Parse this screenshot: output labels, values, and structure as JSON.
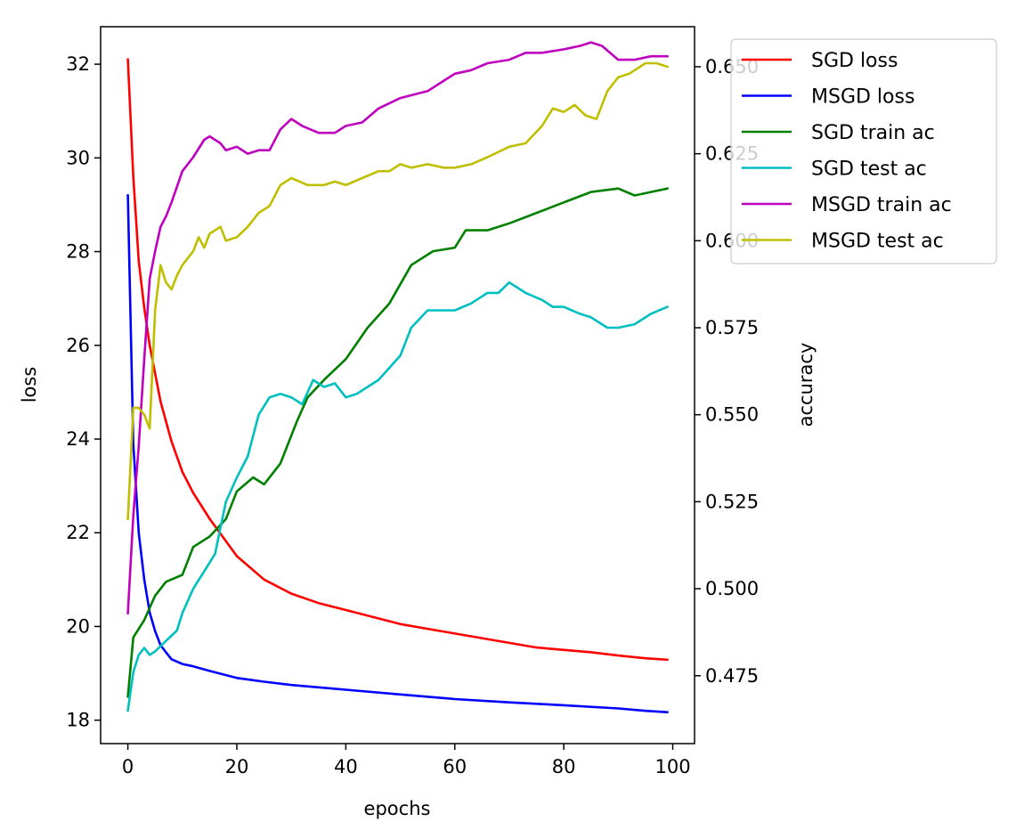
{
  "chart_data": {
    "type": "line",
    "xlabel": "epochs",
    "ylabel_left": "loss",
    "ylabel_right": "accuracy",
    "xlim": [
      -5,
      104
    ],
    "ylim_left": [
      17.5,
      32.8
    ],
    "ylim_right": [
      0.4555,
      0.6615
    ],
    "xticks": [
      0,
      20,
      40,
      60,
      80,
      100
    ],
    "xtick_labels": [
      "0",
      "20",
      "40",
      "60",
      "80",
      "100"
    ],
    "yticks_left": [
      18,
      20,
      22,
      24,
      26,
      28,
      30,
      32
    ],
    "ytick_labels_left": [
      "18",
      "20",
      "22",
      "24",
      "26",
      "28",
      "30",
      "32"
    ],
    "yticks_right": [
      0.475,
      0.5,
      0.525,
      0.55,
      0.575,
      0.6,
      0.625,
      0.65
    ],
    "ytick_labels_right": [
      "0.475",
      "0.500",
      "0.525",
      "0.550",
      "0.575",
      "0.600",
      "0.625",
      "0.650"
    ],
    "grid": false,
    "legend_placement": "outside upper-right",
    "series": [
      {
        "name": "SGD loss",
        "color": "#ff0000",
        "axis": "left",
        "x": [
          0,
          1,
          2,
          3,
          4,
          5,
          6,
          8,
          10,
          12,
          15,
          20,
          25,
          30,
          35,
          40,
          45,
          50,
          55,
          60,
          65,
          70,
          75,
          80,
          85,
          90,
          95,
          99
        ],
        "y": [
          32.1,
          29.6,
          27.8,
          26.8,
          26.0,
          25.4,
          24.8,
          23.95,
          23.3,
          22.85,
          22.3,
          21.5,
          21.0,
          20.7,
          20.5,
          20.35,
          20.2,
          20.05,
          19.95,
          19.85,
          19.75,
          19.65,
          19.55,
          19.5,
          19.45,
          19.38,
          19.32,
          19.29
        ]
      },
      {
        "name": "MSGD loss",
        "color": "#0000ff",
        "axis": "left",
        "x": [
          0,
          1,
          2,
          3,
          4,
          5,
          6,
          7,
          8,
          10,
          12,
          15,
          20,
          25,
          30,
          40,
          50,
          60,
          70,
          80,
          90,
          95,
          99
        ],
        "y": [
          29.2,
          23.9,
          22.0,
          21.0,
          20.3,
          19.9,
          19.6,
          19.45,
          19.3,
          19.2,
          19.15,
          19.05,
          18.9,
          18.82,
          18.75,
          18.65,
          18.55,
          18.45,
          18.38,
          18.32,
          18.25,
          18.2,
          18.17
        ]
      },
      {
        "name": "SGD train ac",
        "color": "#008000",
        "axis": "right",
        "x": [
          0,
          1,
          3,
          5,
          7,
          10,
          12,
          15,
          18,
          20,
          23,
          25,
          28,
          31,
          33,
          36,
          40,
          44,
          48,
          52,
          56,
          60,
          62,
          66,
          70,
          75,
          80,
          85,
          90,
          93,
          96,
          99
        ],
        "y": [
          0.469,
          0.486,
          0.491,
          0.498,
          0.502,
          0.504,
          0.512,
          0.515,
          0.52,
          0.528,
          0.532,
          0.53,
          0.536,
          0.548,
          0.555,
          0.56,
          0.566,
          0.575,
          0.582,
          0.593,
          0.597,
          0.598,
          0.603,
          0.603,
          0.605,
          0.608,
          0.611,
          0.614,
          0.615,
          0.613,
          0.614,
          0.615
        ]
      },
      {
        "name": "SGD test ac",
        "color": "#00bfbf",
        "axis": "right",
        "x": [
          0,
          1,
          2,
          3,
          4,
          5,
          7,
          9,
          10,
          12,
          14,
          16,
          18,
          20,
          22,
          24,
          26,
          28,
          30,
          32,
          34,
          36,
          38,
          40,
          42,
          46,
          50,
          52,
          55,
          58,
          60,
          63,
          66,
          68,
          70,
          73,
          76,
          78,
          80,
          83,
          85,
          88,
          90,
          93,
          96,
          99
        ],
        "y": [
          0.465,
          0.476,
          0.481,
          0.483,
          0.481,
          0.482,
          0.485,
          0.488,
          0.493,
          0.5,
          0.505,
          0.51,
          0.525,
          0.532,
          0.538,
          0.55,
          0.555,
          0.556,
          0.555,
          0.553,
          0.56,
          0.558,
          0.559,
          0.555,
          0.556,
          0.56,
          0.567,
          0.575,
          0.58,
          0.58,
          0.58,
          0.582,
          0.585,
          0.585,
          0.588,
          0.585,
          0.583,
          0.581,
          0.581,
          0.579,
          0.578,
          0.575,
          0.575,
          0.576,
          0.579,
          0.581
        ]
      },
      {
        "name": "MSGD train ac",
        "color": "#bf00bf",
        "axis": "right",
        "x": [
          0,
          1,
          2,
          3,
          4,
          5,
          6,
          7,
          8,
          10,
          12,
          14,
          15,
          17,
          18,
          20,
          22,
          24,
          26,
          28,
          30,
          32,
          35,
          38,
          40,
          43,
          46,
          50,
          55,
          58,
          60,
          63,
          66,
          70,
          73,
          76,
          80,
          83,
          85,
          87,
          90,
          93,
          96,
          99
        ],
        "y": [
          0.493,
          0.521,
          0.541,
          0.566,
          0.589,
          0.597,
          0.604,
          0.607,
          0.611,
          0.62,
          0.624,
          0.629,
          0.63,
          0.628,
          0.626,
          0.627,
          0.625,
          0.626,
          0.626,
          0.632,
          0.635,
          0.633,
          0.631,
          0.631,
          0.633,
          0.634,
          0.638,
          0.641,
          0.643,
          0.646,
          0.648,
          0.649,
          0.651,
          0.652,
          0.654,
          0.654,
          0.655,
          0.656,
          0.657,
          0.656,
          0.652,
          0.652,
          0.653,
          0.653
        ]
      },
      {
        "name": "MSGD test ac",
        "color": "#bfbf00",
        "axis": "right",
        "x": [
          0,
          1,
          2,
          3,
          4,
          5,
          6,
          7,
          8,
          9,
          10,
          12,
          13,
          14,
          15,
          17,
          18,
          20,
          22,
          24,
          26,
          28,
          30,
          33,
          36,
          38,
          40,
          43,
          46,
          48,
          50,
          52,
          55,
          58,
          60,
          63,
          66,
          70,
          73,
          76,
          78,
          80,
          82,
          84,
          86,
          88,
          90,
          92,
          95,
          97,
          99
        ],
        "y": [
          0.52,
          0.552,
          0.552,
          0.55,
          0.546,
          0.58,
          0.593,
          0.588,
          0.586,
          0.59,
          0.593,
          0.597,
          0.601,
          0.598,
          0.602,
          0.604,
          0.6,
          0.601,
          0.604,
          0.608,
          0.61,
          0.616,
          0.618,
          0.616,
          0.616,
          0.617,
          0.616,
          0.618,
          0.62,
          0.62,
          0.622,
          0.621,
          0.622,
          0.621,
          0.621,
          0.622,
          0.624,
          0.627,
          0.628,
          0.633,
          0.638,
          0.637,
          0.639,
          0.636,
          0.635,
          0.643,
          0.647,
          0.648,
          0.651,
          0.651,
          0.65
        ]
      }
    ]
  }
}
